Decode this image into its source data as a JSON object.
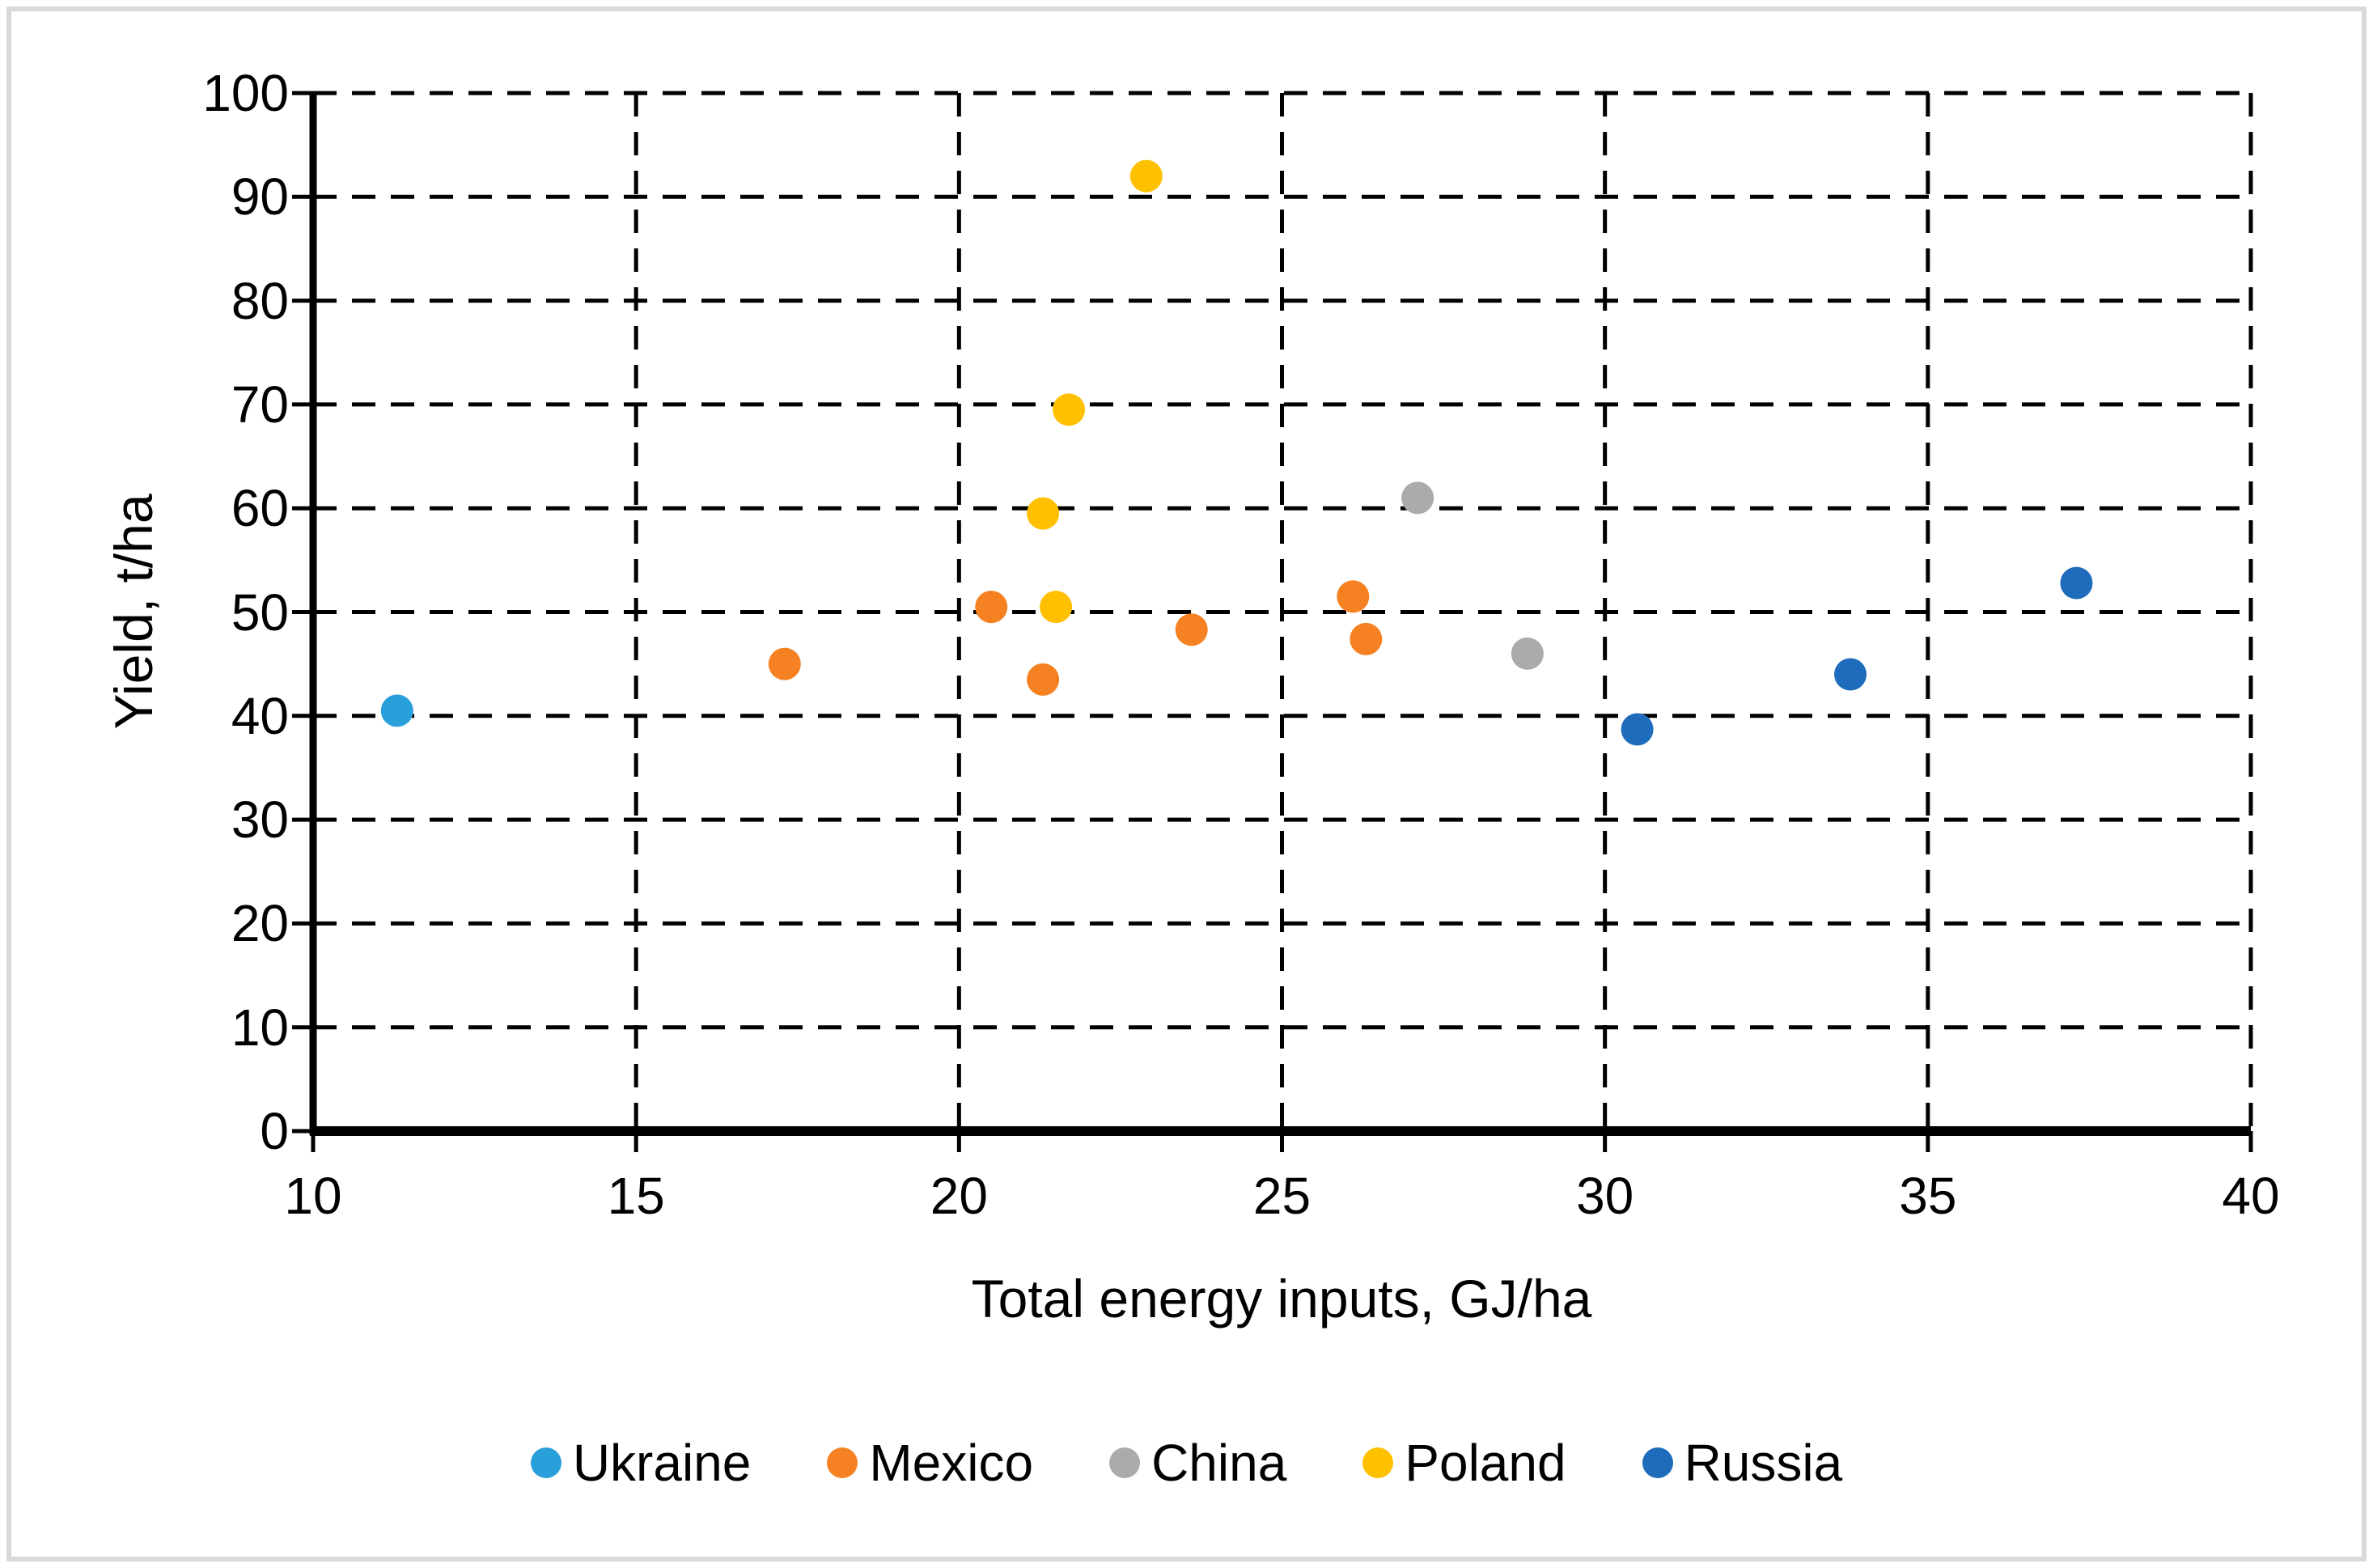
{
  "chart_data": {
    "type": "scatter",
    "title": "",
    "xlabel": "Total energy inputs, GJ/ha",
    "ylabel": "Yield, t/ha",
    "xlim": [
      10,
      40
    ],
    "ylim": [
      0,
      100
    ],
    "xticks": [
      10,
      15,
      20,
      25,
      30,
      35,
      40
    ],
    "yticks": [
      0,
      10,
      20,
      30,
      40,
      50,
      60,
      70,
      80,
      90,
      100
    ],
    "grid": "dashed-black",
    "legend_position": "bottom-center",
    "series": [
      {
        "name": "Ukraine",
        "color": "#2AA0DB",
        "points": [
          [
            11.3,
            40.5
          ]
        ]
      },
      {
        "name": "Mexico",
        "color": "#F58122",
        "points": [
          [
            17.3,
            45.0
          ],
          [
            20.5,
            50.5
          ],
          [
            21.3,
            43.5
          ],
          [
            23.6,
            48.3
          ],
          [
            26.1,
            51.5
          ],
          [
            26.3,
            47.4
          ]
        ]
      },
      {
        "name": "China",
        "color": "#ABABAB",
        "points": [
          [
            27.1,
            61.0
          ],
          [
            28.8,
            46.0
          ]
        ]
      },
      {
        "name": "Poland",
        "color": "#FFC000",
        "points": [
          [
            21.3,
            59.5
          ],
          [
            21.5,
            50.5
          ],
          [
            21.7,
            69.5
          ],
          [
            22.9,
            92.0
          ]
        ]
      },
      {
        "name": "Russia",
        "color": "#1F6BBC",
        "points": [
          [
            30.5,
            38.7
          ],
          [
            33.8,
            44.0
          ],
          [
            37.3,
            52.8
          ]
        ]
      }
    ]
  },
  "colors": {
    "figure_border": "#D9D9D9",
    "gridline": "#000000",
    "axis": "#000000",
    "text": "#000000",
    "background": "#FFFFFF"
  }
}
